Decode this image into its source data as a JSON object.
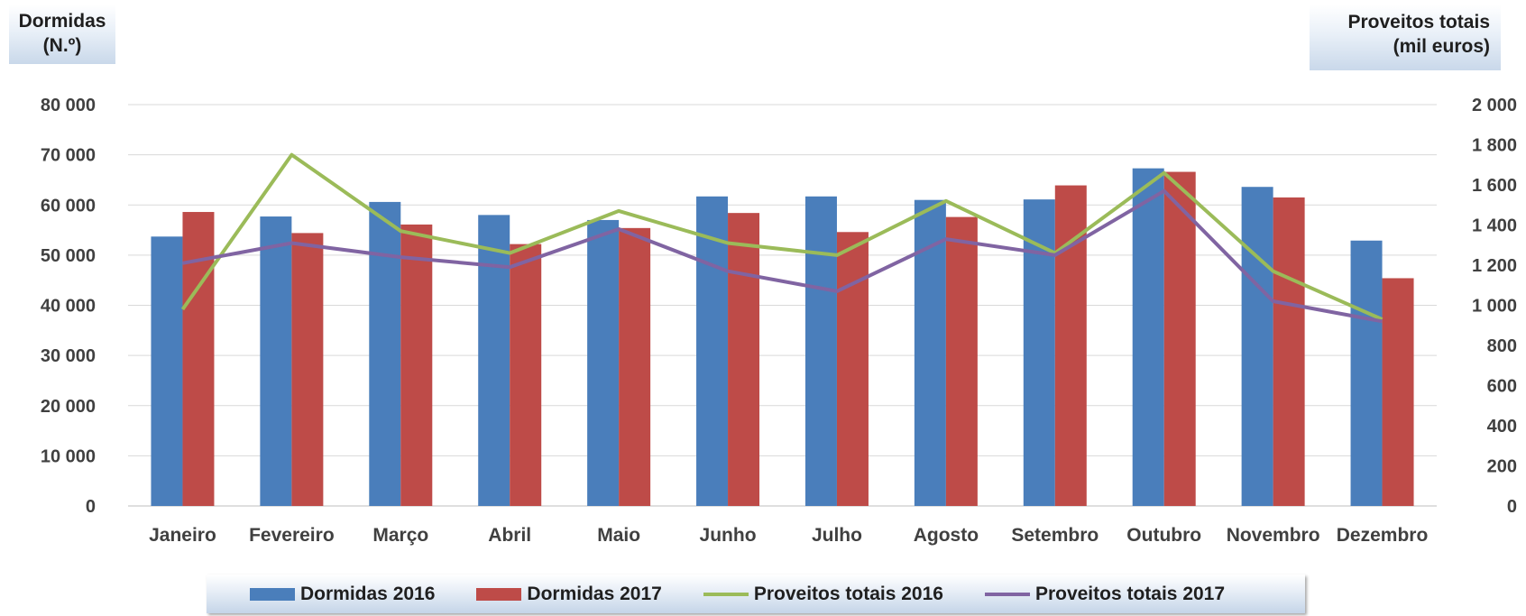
{
  "left_axis_title": {
    "line1": "Dormidas",
    "line2": "(N.º)"
  },
  "right_axis_title": {
    "line1": "Proveitos totais",
    "line2": "(mil euros)"
  },
  "chart_data": {
    "type": "bar",
    "categories": [
      "Janeiro",
      "Fevereiro",
      "Março",
      "Abril",
      "Maio",
      "Junho",
      "Julho",
      "Agosto",
      "Setembro",
      "Outubro",
      "Novembro",
      "Dezembro"
    ],
    "series": [
      {
        "name": "Dormidas 2016",
        "type": "bar",
        "axis": "left",
        "color": "#4a7ebb",
        "values": [
          53700,
          57700,
          60600,
          58000,
          57000,
          61700,
          61700,
          61000,
          61100,
          67300,
          63600,
          52900
        ]
      },
      {
        "name": "Dormidas 2017",
        "type": "bar",
        "axis": "left",
        "color": "#be4b48",
        "values": [
          58600,
          54400,
          56100,
          52200,
          55400,
          58400,
          54600,
          57600,
          63900,
          66600,
          61500,
          45400
        ]
      },
      {
        "name": "Proveitos totais 2016",
        "type": "line",
        "axis": "right",
        "color": "#9bbb59",
        "values": [
          980,
          1750,
          1370,
          1260,
          1470,
          1310,
          1250,
          1520,
          1260,
          1660,
          1170,
          930
        ]
      },
      {
        "name": "Proveitos totais 2017",
        "type": "line",
        "axis": "right",
        "color": "#8064a2",
        "values": [
          1210,
          1310,
          1240,
          1190,
          1380,
          1170,
          1070,
          1330,
          1250,
          1570,
          1020,
          920
        ]
      }
    ],
    "y_left": {
      "min": 0,
      "max": 80000,
      "ticks": [
        "0",
        "10 000",
        "20 000",
        "30 000",
        "40 000",
        "50 000",
        "60 000",
        "70 000",
        "80 000"
      ]
    },
    "y_right": {
      "min": 0,
      "max": 2000,
      "ticks": [
        "0",
        "200",
        "400",
        "600",
        "800",
        "1 000",
        "1 200",
        "1 400",
        "1 600",
        "1 800",
        "2 000"
      ]
    },
    "grid": true,
    "legend_position": "bottom"
  }
}
